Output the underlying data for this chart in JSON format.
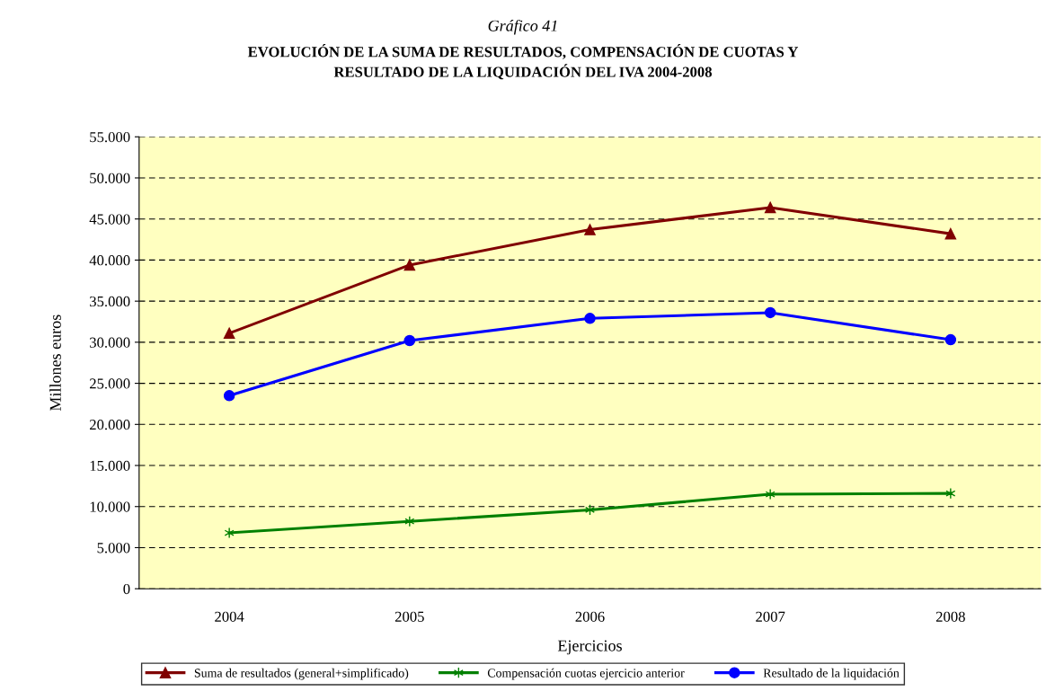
{
  "chart_data": {
    "type": "line",
    "title": "Gráfico 41",
    "subtitle": "EVOLUCIÓN DE LA SUMA DE RESULTADOS, COMPENSACIÓN DE CUOTAS Y\nRESULTADO DE LA LIQUIDACIÓN DEL IVA 2004-2008",
    "xlabel": "Ejercicios",
    "ylabel": "Millones euros",
    "categories": [
      "2004",
      "2005",
      "2006",
      "2007",
      "2008"
    ],
    "series": [
      {
        "name": "Suma de resultados (general+simplificado)",
        "color": "#800000",
        "marker": "triangle",
        "values": [
          31100,
          39400,
          43700,
          46400,
          43200
        ]
      },
      {
        "name": "Compensación cuotas ejercicio anterior",
        "color": "#008000",
        "marker": "cross",
        "values": [
          6800,
          8200,
          9600,
          11500,
          11600
        ]
      },
      {
        "name": "Resultado de la liquidación",
        "color": "#0000ff",
        "marker": "circle",
        "values": [
          23500,
          30200,
          32900,
          33600,
          30300
        ]
      }
    ],
    "ylim": [
      0,
      55000
    ],
    "yticks": [
      {
        "value": 0,
        "label": "0"
      },
      {
        "value": 5000,
        "label": "5.000"
      },
      {
        "value": 10000,
        "label": "10.000"
      },
      {
        "value": 15000,
        "label": "15.000"
      },
      {
        "value": 20000,
        "label": "20.000"
      },
      {
        "value": 25000,
        "label": "25.000"
      },
      {
        "value": 30000,
        "label": "30.000"
      },
      {
        "value": 35000,
        "label": "35.000"
      },
      {
        "value": 40000,
        "label": "40.000"
      },
      {
        "value": 45000,
        "label": "45.000"
      },
      {
        "value": 50000,
        "label": "50.000"
      },
      {
        "value": 55000,
        "label": "55.000"
      }
    ],
    "grid": "y",
    "legend": "bottom",
    "line_style": "solid"
  }
}
